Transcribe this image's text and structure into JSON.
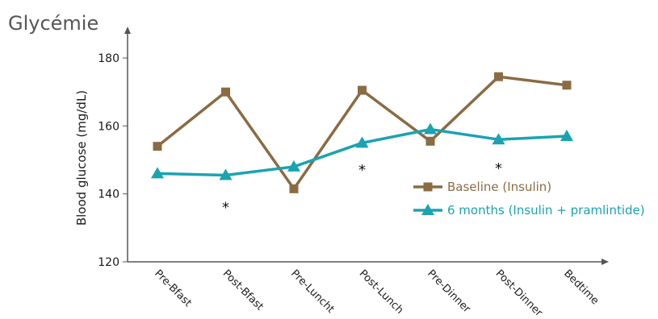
{
  "page_title": "Glycémie",
  "colors": {
    "baseline": "#8B6B43",
    "six_months": "#1AA3B0",
    "axis": "#555555",
    "text": "#1a1a1a"
  },
  "chart_data": {
    "type": "line",
    "title": "",
    "xlabel": "",
    "ylabel": "Blood glucose (mg/dL)",
    "ylim": [
      120,
      180
    ],
    "yticks": [
      120,
      140,
      160,
      180
    ],
    "grid": false,
    "legend_position": "right",
    "categories": [
      "Pre-Bfast",
      "Post-Bfast",
      "Pre-Luncht",
      "Post-Lunch",
      "Pre-Dinner",
      "Post-Dinner",
      "Bedtime"
    ],
    "series": [
      {
        "name": "Baseline (Insulin)",
        "marker": "square",
        "color": "#8B6B43",
        "values": [
          154,
          170,
          141.5,
          170.5,
          155.5,
          174.5,
          172
        ]
      },
      {
        "name": "6 months (Insulin + pramlintide)",
        "marker": "triangle",
        "color": "#1AA3B0",
        "values": [
          146,
          145.5,
          148,
          155,
          159,
          156,
          157
        ]
      }
    ],
    "annotations": [
      {
        "text": "*",
        "category": "Post-Bfast",
        "y": 136
      },
      {
        "text": "*",
        "category": "Post-Lunch",
        "y": 147
      },
      {
        "text": "*",
        "category": "Post-Dinner",
        "y": 147.5
      }
    ]
  }
}
